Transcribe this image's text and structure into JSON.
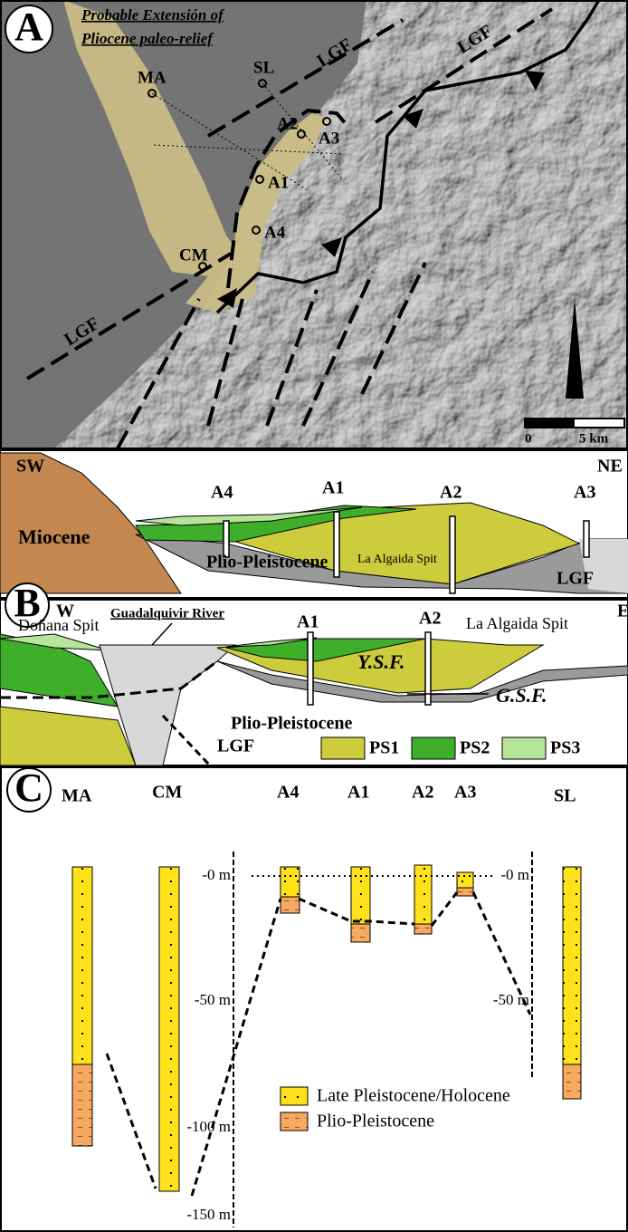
{
  "panel_a": {
    "label": "A",
    "title_lines": [
      "Probable Extensión of",
      "Pliocene paleo-relief"
    ],
    "sites": [
      "MA",
      "SL",
      "A2",
      "A3",
      "A1",
      "A4",
      "CM"
    ],
    "faults": [
      "LGF",
      "LGF",
      "LGF"
    ],
    "scale": [
      "0",
      "5 km"
    ]
  },
  "panel_b_upper": {
    "sw": "SW",
    "ne": "NE",
    "columns": [
      "A4",
      "A1",
      "A2",
      "A3"
    ],
    "miocene": "Miocene",
    "spit": "La Algaida Spit",
    "base": "Plio-Pleistocene",
    "fault": "LGF"
  },
  "panel_b_lower": {
    "label": "B",
    "w": "W",
    "e": "E",
    "river": "Guadalquivir River",
    "donana": "Doñana Spit",
    "columns": [
      "A1",
      "A2"
    ],
    "spit": "La Algaida Spit",
    "ysf": "Y.S.F.",
    "gsf": "G.S.F.",
    "base": "Plio-Pleistocene",
    "fault": "LGF",
    "legend": [
      "PS1",
      "PS2",
      "PS3"
    ]
  },
  "panel_c": {
    "label": "C",
    "columns": [
      "MA",
      "CM",
      "A4",
      "A1",
      "A2",
      "A3",
      "SL"
    ],
    "depths_left": [
      "-0 m",
      "-50 m",
      "-100 m",
      "-150 m"
    ],
    "depths_right": [
      "-0 m",
      "-50 m"
    ],
    "legend": [
      "Late Pleistocene/Holocene",
      "Plio-Pleistocene"
    ]
  }
}
